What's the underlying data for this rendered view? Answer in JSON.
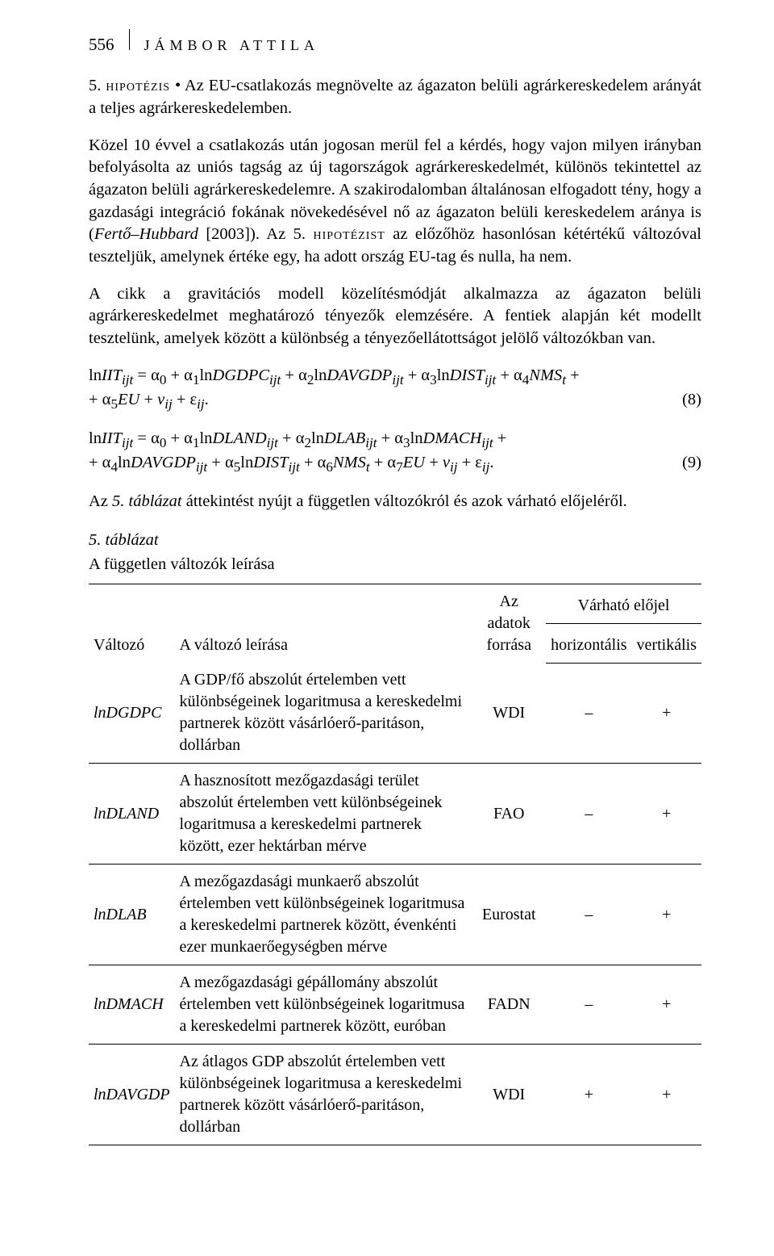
{
  "page": {
    "number": "556",
    "author_head": "JÁMBOR ATTILA"
  },
  "para1_prefix": "5. ",
  "para1_sc": "hipotézis",
  "para1_rest": " • Az EU-csatlakozás megnövelte az ágazaton belüli agrárkereskedelem arányát a teljes agrárkereskedelemben.",
  "para2_a": "Közel 10 évvel a csatlakozás után jogosan merül fel a kérdés, hogy vajon milyen irányban befolyásolta az uniós tagság az új tagországok agrárkereskedelmét, különös tekintettel az ágazaton belüli agrárkereskedelemre. A szakirodalomban általánosan elfogadott tény, hogy a gazdasági integráció fokának növekedésével nő az ágazaton belüli kereskedelem aránya is (",
  "para2_cite": "Fertő–Hubbard",
  "para2_b": " [2003]). Az 5. ",
  "para2_sc": "hipotézist",
  "para2_c": " az előzőhöz hasonlósan kétértékű változóval teszteljük, amelynek értéke egy, ha adott ország EU-tag és nulla, ha nem.",
  "para3": "A cikk a gravitációs modell közelítésmódját alkalmazza az ágazaton belüli agrárkereskedelmet meghatározó tényezők elemzésére. A fentiek alapján két modellt tesztelünk, amelyek között a különbség a tényezőellátottságot jelölő változókban van.",
  "eq8_line1": "ln<i>IIT<sub>ijt</sub></i> = α<sub>0</sub> + α<sub>1</sub>ln<i>DGDPC<sub>ijt</sub></i> + α<sub>2</sub>ln<i>DAVGDP<sub>ijt</sub></i> + α<sub>3</sub>ln<i>DIST<sub>ijt</sub></i> + α<sub>4</sub><i>NMS<sub>t</sub></i> +",
  "eq8_line2": "+ α<sub>5</sub><i>EU</i> + <i>v<sub>ij</sub></i> + ε<sub><i>ij</i></sub>.",
  "eq8_num": "(8)",
  "eq9_line1": "ln<i>IIT<sub>ijt</sub></i> = α<sub>0</sub> + α<sub>1</sub>ln<i>DLAND<sub>ijt</sub></i> + α<sub>2</sub>ln<i>DLAB<sub>ijt</sub></i> + α<sub>3</sub>ln<i>DMACH<sub>ijt</sub></i> +",
  "eq9_line2": "+ α<sub>4</sub>ln<i>DAVGDP<sub>ijt</sub></i> + α<sub>5</sub>ln<i>DIST<sub>ijt</sub></i> + α<sub>6</sub><i>NMS<sub>t</sub></i> + α<sub>7</sub><i>EU</i> + <i>v<sub>ij</sub></i> + ε<sub><i>ij</i></sub>.",
  "eq9_num": "(9)",
  "para4_a": "Az ",
  "para4_i": "5. táblázat",
  "para4_b": " áttekintést nyújt a független változókról és azok várható előjeléről.",
  "table": {
    "caption": "5. táblázat",
    "title": "A független változók leírása",
    "headers": {
      "var": "Változó",
      "desc": "A változó leírása",
      "src": "Az adatok forrása",
      "sign_group": "Várható előjel",
      "sign_h": "horizontális",
      "sign_v": "vertikális"
    },
    "rows": [
      {
        "var": "lnDGDPC",
        "desc": "A GDP/fő abszolút értelemben vett különbségeinek logaritmusa a kereskedelmi partnerek között vásárlóerő-paritáson, dollárban",
        "src": "WDI",
        "h": "–",
        "v": "+"
      },
      {
        "var": "lnDLAND",
        "desc": "A hasznosított mezőgazdasági terület abszolút értelemben vett különbségeinek logaritmusa a kereskedelmi partnerek között, ezer hektárban mérve",
        "src": "FAO",
        "h": "–",
        "v": "+"
      },
      {
        "var": "lnDLAB",
        "desc": "A mezőgazdasági munkaerő abszolút értelemben vett különbségeinek logaritmusa a kereskedelmi partnerek között, évenkénti ezer munkaerőegységben mérve",
        "src": "Eurostat",
        "h": "–",
        "v": "+"
      },
      {
        "var": "lnDMACH",
        "desc": "A mezőgazdasági gépállomány abszolút értelemben vett különbségeinek logaritmusa a kereskedelmi partnerek között, euróban",
        "src": "FADN",
        "h": "–",
        "v": "+"
      },
      {
        "var": "lnDAVGDP",
        "desc": "Az átlagos GDP abszolút értelemben vett különbségeinek logaritmusa a kereskedelmi partnerek között vásárlóerő-paritáson, dollárban",
        "src": "WDI",
        "h": "+",
        "v": "+"
      }
    ]
  }
}
